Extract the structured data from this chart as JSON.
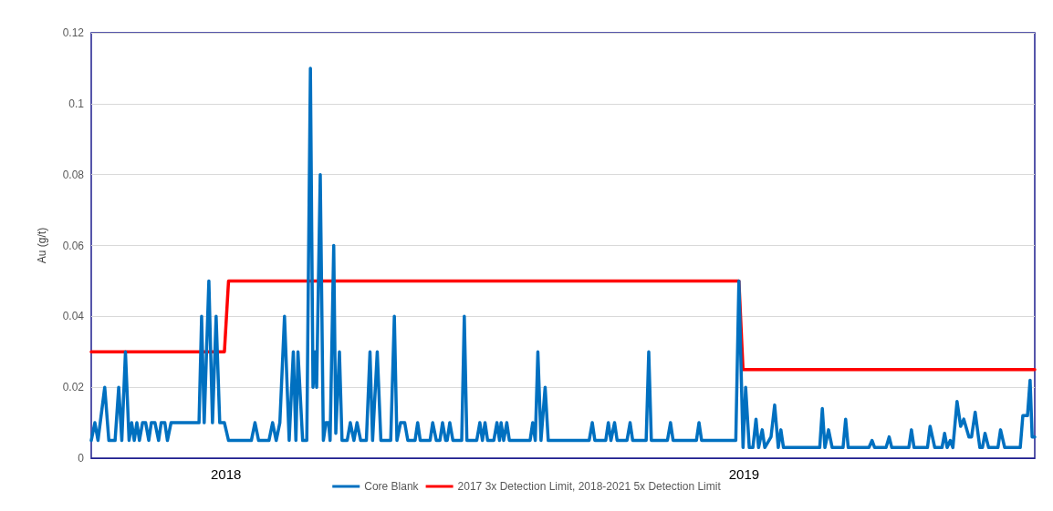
{
  "chart_data": {
    "type": "line",
    "ylabel": "Au (g/t)",
    "xlim": [
      2017.74,
      2019.561
    ],
    "xticks": [
      {
        "value": 2018,
        "label": "2018"
      },
      {
        "value": 2019,
        "label": "2019"
      }
    ],
    "ylim": [
      0,
      0.12
    ],
    "yticks": [
      0,
      0.02,
      0.04,
      0.06,
      0.08,
      0.1,
      0.12
    ],
    "grid": "y",
    "legend": "bottom",
    "marker": "none",
    "line_style": "solid",
    "series": [
      {
        "name": "Core Blank",
        "color": "#0070c0",
        "x": [
          2017.74,
          2017.747,
          2017.753,
          2017.766,
          2017.774,
          2017.786,
          2017.793,
          2017.799,
          2017.806,
          2017.813,
          2017.818,
          2017.823,
          2017.828,
          2017.833,
          2017.839,
          2017.845,
          2017.851,
          2017.856,
          2017.863,
          2017.87,
          2017.875,
          2017.882,
          2017.887,
          2017.894,
          2017.948,
          2017.953,
          2017.958,
          2017.967,
          2017.974,
          2017.981,
          2017.988,
          2017.997,
          2018.005,
          2018.049,
          2018.056,
          2018.063,
          2018.083,
          2018.09,
          2018.097,
          2018.104,
          2018.113,
          2018.122,
          2018.13,
          2018.135,
          2018.139,
          2018.148,
          2018.156,
          2018.163,
          2018.168,
          2018.172,
          2018.175,
          2018.182,
          2018.188,
          2018.193,
          2018.198,
          2018.201,
          2018.208,
          2018.212,
          2018.219,
          2018.224,
          2018.234,
          2018.24,
          2018.247,
          2018.253,
          2018.26,
          2018.271,
          2018.278,
          2018.283,
          2018.292,
          2018.299,
          2018.318,
          2018.325,
          2018.33,
          2018.337,
          2018.345,
          2018.351,
          2018.365,
          2018.37,
          2018.375,
          2018.394,
          2018.399,
          2018.406,
          2018.413,
          2018.418,
          2018.424,
          2018.427,
          2018.432,
          2018.438,
          2018.455,
          2018.46,
          2018.465,
          2018.484,
          2018.49,
          2018.495,
          2018.5,
          2018.505,
          2018.517,
          2018.523,
          2018.528,
          2018.531,
          2018.536,
          2018.542,
          2018.547,
          2018.587,
          2018.592,
          2018.597,
          2018.602,
          2018.608,
          2018.616,
          2018.622,
          2018.701,
          2018.707,
          2018.712,
          2018.733,
          2018.738,
          2018.743,
          2018.75,
          2018.755,
          2018.774,
          2018.78,
          2018.785,
          2018.811,
          2018.816,
          2018.821,
          2018.852,
          2018.858,
          2018.863,
          2018.908,
          2018.913,
          2018.918,
          2018.984,
          2018.99,
          2018.998,
          2019.003,
          2019.01,
          2019.017,
          2019.023,
          2019.028,
          2019.035,
          2019.04,
          2019.052,
          2019.059,
          2019.066,
          2019.071,
          2019.076,
          2019.146,
          2019.151,
          2019.156,
          2019.163,
          2019.17,
          2019.191,
          2019.196,
          2019.201,
          2019.241,
          2019.247,
          2019.252,
          2019.274,
          2019.28,
          2019.285,
          2019.318,
          2019.323,
          2019.328,
          2019.354,
          2019.359,
          2019.368,
          2019.382,
          2019.387,
          2019.392,
          2019.398,
          2019.403,
          2019.411,
          2019.418,
          2019.424,
          2019.434,
          2019.439,
          2019.446,
          2019.455,
          2019.46,
          2019.465,
          2019.472,
          2019.49,
          2019.495,
          2019.503,
          2019.533,
          2019.538,
          2019.547,
          2019.552,
          2019.556,
          2019.561
        ],
        "values": [
          0.005,
          0.01,
          0.005,
          0.02,
          0.005,
          0.005,
          0.02,
          0.005,
          0.03,
          0.005,
          0.01,
          0.005,
          0.01,
          0.005,
          0.01,
          0.01,
          0.005,
          0.01,
          0.01,
          0.005,
          0.01,
          0.01,
          0.005,
          0.01,
          0.01,
          0.04,
          0.01,
          0.05,
          0.01,
          0.04,
          0.01,
          0.01,
          0.005,
          0.005,
          0.01,
          0.005,
          0.005,
          0.01,
          0.005,
          0.01,
          0.04,
          0.005,
          0.03,
          0.005,
          0.03,
          0.005,
          0.005,
          0.11,
          0.02,
          0.03,
          0.02,
          0.08,
          0.005,
          0.01,
          0.01,
          0.005,
          0.06,
          0.007,
          0.03,
          0.005,
          0.005,
          0.01,
          0.005,
          0.01,
          0.005,
          0.005,
          0.03,
          0.005,
          0.03,
          0.005,
          0.005,
          0.04,
          0.005,
          0.01,
          0.01,
          0.005,
          0.005,
          0.01,
          0.005,
          0.005,
          0.01,
          0.005,
          0.005,
          0.01,
          0.005,
          0.005,
          0.01,
          0.005,
          0.005,
          0.04,
          0.005,
          0.005,
          0.01,
          0.005,
          0.01,
          0.005,
          0.005,
          0.01,
          0.005,
          0.01,
          0.005,
          0.01,
          0.005,
          0.005,
          0.01,
          0.005,
          0.03,
          0.005,
          0.02,
          0.005,
          0.005,
          0.01,
          0.005,
          0.005,
          0.01,
          0.005,
          0.01,
          0.005,
          0.005,
          0.01,
          0.005,
          0.005,
          0.03,
          0.005,
          0.005,
          0.01,
          0.005,
          0.005,
          0.01,
          0.005,
          0.005,
          0.05,
          0.003,
          0.02,
          0.003,
          0.003,
          0.011,
          0.003,
          0.008,
          0.003,
          0.006,
          0.015,
          0.003,
          0.008,
          0.003,
          0.003,
          0.014,
          0.003,
          0.008,
          0.003,
          0.003,
          0.011,
          0.003,
          0.003,
          0.005,
          0.003,
          0.003,
          0.006,
          0.003,
          0.003,
          0.008,
          0.003,
          0.003,
          0.009,
          0.003,
          0.003,
          0.007,
          0.003,
          0.005,
          0.003,
          0.016,
          0.009,
          0.011,
          0.006,
          0.006,
          0.013,
          0.003,
          0.003,
          0.007,
          0.003,
          0.003,
          0.008,
          0.003,
          0.003,
          0.012,
          0.012,
          0.022,
          0.006,
          0.006
        ]
      },
      {
        "name": "2017 3x Detection Limit, 2018-2021 5x Detection Limit",
        "color": "#ff0000",
        "x": [
          2017.74,
          2017.997,
          2018.005,
          2018.99,
          2018.998,
          2019.561
        ],
        "values": [
          0.03,
          0.03,
          0.05,
          0.05,
          0.025,
          0.025
        ]
      }
    ]
  }
}
